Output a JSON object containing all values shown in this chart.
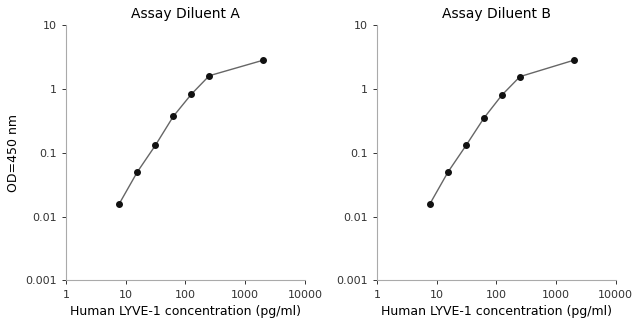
{
  "panel_A": {
    "title": "Assay Diluent A",
    "x": [
      7.8,
      15.6,
      31.25,
      62.5,
      125,
      250,
      2000
    ],
    "y": [
      0.016,
      0.05,
      0.13,
      0.37,
      0.82,
      1.6,
      2.8
    ]
  },
  "panel_B": {
    "title": "Assay Diluent B",
    "x": [
      7.8,
      15.6,
      31.25,
      62.5,
      125,
      250,
      2000
    ],
    "y": [
      0.016,
      0.05,
      0.13,
      0.35,
      0.8,
      1.55,
      2.8
    ]
  },
  "xlabel": "Human LYVE-1 concentration (pg/ml)",
  "ylabel": "OD=450 nm",
  "xlim": [
    1,
    10000
  ],
  "ylim": [
    0.001,
    10
  ],
  "xticks": [
    1,
    10,
    100,
    1000,
    10000
  ],
  "yticks": [
    0.001,
    0.01,
    0.1,
    1,
    10
  ],
  "ytick_labels": [
    "0.001",
    "0.01",
    "0.1",
    "1",
    "10"
  ],
  "xtick_labels": [
    "1",
    "10",
    "100",
    "1000",
    "10000"
  ],
  "line_color": "#666666",
  "marker_color": "#111111",
  "marker_size": 4,
  "line_width": 1.0,
  "title_fontsize": 10,
  "label_fontsize": 9,
  "tick_fontsize": 8,
  "bg_color": "#ffffff",
  "spine_color": "#aaaaaa"
}
